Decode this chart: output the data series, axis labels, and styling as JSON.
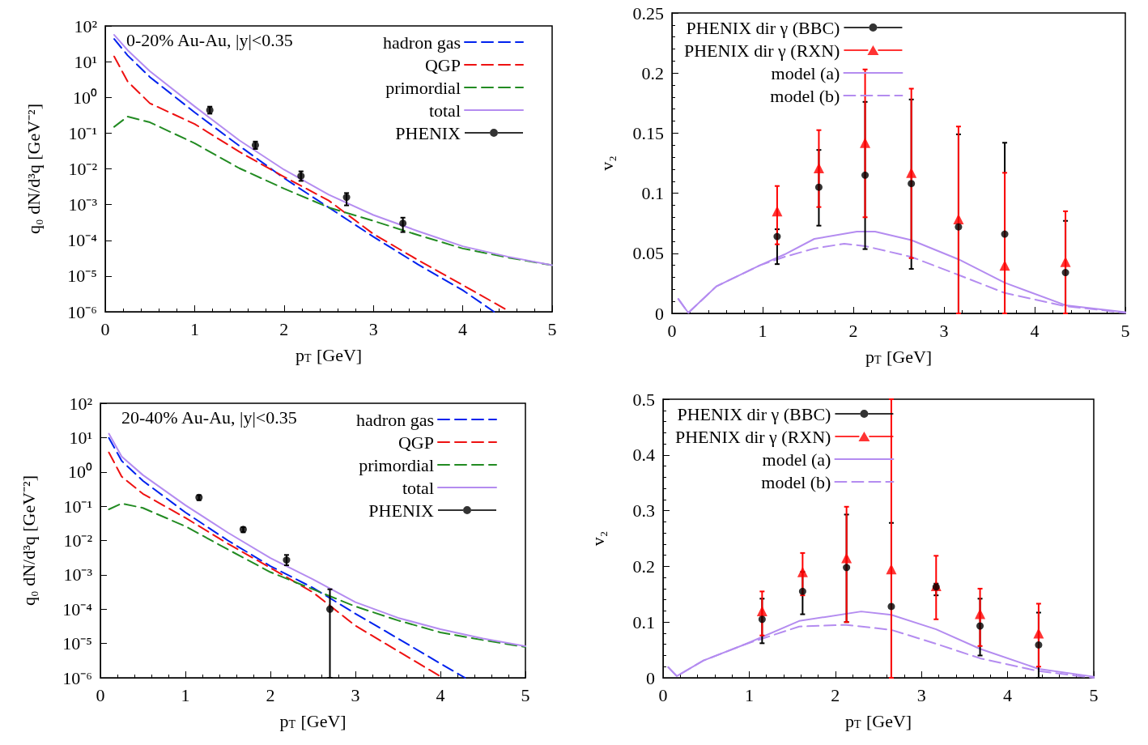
{
  "chart_data": [
    {
      "type": "line",
      "xlabel": "p$_{T}$ [GeV]",
      "ylabel": "q₀ dN/d³q [GeV⁻²]",
      "xlim": [
        0,
        5
      ],
      "xticks": [
        0,
        1,
        2,
        3,
        4,
        5
      ],
      "ylim": [
        1e-06,
        100
      ],
      "yticks": [
        {
          "value": 1e-06,
          "label": "10⁻⁶"
        },
        {
          "value": 1e-05,
          "label": "10⁻⁵"
        },
        {
          "value": 0.0001,
          "label": "10⁻⁴"
        },
        {
          "value": 0.001,
          "label": "10⁻³"
        },
        {
          "value": 0.01,
          "label": "10⁻²"
        },
        {
          "value": 0.1,
          "label": "10⁻¹"
        },
        {
          "value": 1,
          "label": "10⁰"
        },
        {
          "value": 10,
          "label": "10¹"
        },
        {
          "value": 100,
          "label": "10²"
        }
      ],
      "log": "y",
      "legend": "top right",
      "annotations": [
        "0-20% Au-Au, |y|<0.35"
      ],
      "series": [
        {
          "name": "hadron gas",
          "color": "#0022ee",
          "line_style": "dashed",
          "marker": "none",
          "x": [
            0.1,
            0.25,
            0.5,
            1,
            1.5,
            2,
            2.5,
            3,
            3.5,
            4,
            4.35
          ],
          "values": [
            43,
            15,
            3.7,
            0.38,
            0.044,
            0.0055,
            0.00083,
            0.000126,
            2.1e-05,
            4e-06,
            1e-06
          ]
        },
        {
          "name": "QGP",
          "type": "line",
          "color": "#ee1111",
          "line_style": "dashed",
          "marker": "none",
          "x": [
            0.1,
            0.25,
            0.5,
            1,
            1.5,
            2,
            2.5,
            3,
            3.5,
            4,
            4.5,
            4.52
          ],
          "values": [
            14,
            2.8,
            0.68,
            0.18,
            0.03,
            0.006,
            0.0013,
            0.00015,
            2.8e-05,
            5.6e-06,
            1.1e-06,
            1e-06
          ]
        },
        {
          "name": "primordial",
          "type": "line",
          "color": "#228b22",
          "line_style": "dashed",
          "marker": "none",
          "x": [
            0.1,
            0.25,
            0.5,
            1,
            1.5,
            2,
            2.5,
            3,
            3.5,
            4,
            4.5,
            5
          ],
          "values": [
            0.15,
            0.29,
            0.2,
            0.052,
            0.0104,
            0.0028,
            0.00083,
            0.00035,
            0.00014,
            5.9e-05,
            3.3e-05,
            2e-05
          ]
        },
        {
          "name": "total",
          "type": "line",
          "color": "#b48cf0",
          "line_style": "solid",
          "marker": "none",
          "x": [
            0.1,
            0.25,
            0.5,
            1,
            1.5,
            2,
            2.5,
            3,
            3.5,
            4,
            4.5,
            5
          ],
          "values": [
            56,
            21,
            5.4,
            0.56,
            0.063,
            0.0095,
            0.0019,
            0.00051,
            0.00018,
            6.8e-05,
            3.5e-05,
            2e-05
          ]
        },
        {
          "name": "PHENIX",
          "type": "scatter",
          "color": "#000000",
          "marker": "circle",
          "x": [
            1.17,
            1.68,
            2.19,
            2.7,
            3.33
          ],
          "values": [
            0.44,
            0.046,
            0.0063,
            0.0016,
            0.0003
          ],
          "errors": [
            [
              0.35,
              0.55
            ],
            [
              0.036,
              0.058
            ],
            [
              0.0046,
              0.0085
            ],
            [
              0.00095,
              0.0021
            ],
            [
              0.00017,
              0.00043
            ]
          ]
        }
      ]
    },
    {
      "type": "line",
      "xlabel": "p$_{T}$ [GeV]",
      "ylabel": "v₂",
      "xlim": [
        0,
        5
      ],
      "xticks": [
        0,
        1,
        2,
        3,
        4,
        5
      ],
      "ylim": [
        0,
        0.25
      ],
      "yticks": [
        0,
        0.05,
        0.1,
        0.15,
        0.2,
        0.25
      ],
      "legend": "top left",
      "series": [
        {
          "name": "PHENIX dir γ (BBC)",
          "type": "scatter",
          "color": "#000000",
          "marker": "circle",
          "x": [
            1.16,
            1.62,
            2.13,
            2.64,
            3.16,
            3.67,
            4.34
          ],
          "values": [
            0.064,
            0.105,
            0.115,
            0.108,
            0.072,
            0.066,
            0.034
          ],
          "errors": [
            [
              0.041,
              0.07
            ],
            [
              0.073,
              0.136
            ],
            [
              0.0535,
              0.176
            ],
            [
              0.037,
              0.178
            ],
            [
              0,
              0.149
            ],
            [
              0,
              0.142
            ],
            [
              0,
              0.077
            ]
          ]
        },
        {
          "name": "PHENIX dir γ (RXN)",
          "type": "scatter",
          "color": "#ff0000",
          "marker": "triangle",
          "x": [
            1.16,
            1.62,
            2.13,
            2.64,
            3.16,
            3.67,
            4.34
          ],
          "values": [
            0.085,
            0.121,
            0.142,
            0.117,
            0.0785,
            0.04,
            0.043
          ],
          "errors": [
            [
              0.0575,
              0.106
            ],
            [
              0.0885,
              0.1525
            ],
            [
              0.08,
              0.203
            ],
            [
              0.046,
              0.187
            ],
            [
              0,
              0.1555
            ],
            [
              0,
              0.117
            ],
            [
              0,
              0.085
            ]
          ]
        },
        {
          "name": "model (a)",
          "type": "line",
          "color": "#b48cf0",
          "line_style": "solid",
          "marker": "none",
          "x": [
            0.07,
            0.18,
            0.49,
            0.97,
            1.24,
            1.57,
            2.04,
            2.24,
            2.64,
            3.16,
            3.67,
            4.34,
            5
          ],
          "values": [
            0.012,
            0.0005,
            0.0225,
            0.04,
            0.049,
            0.062,
            0.068,
            0.068,
            0.061,
            0.045,
            0.0255,
            0.0068,
            0.001
          ]
        },
        {
          "name": "model (b)",
          "type": "line",
          "color": "#b48cf0",
          "line_style": "dashed",
          "marker": "none",
          "x": [
            0.07,
            0.18,
            0.49,
            0.97,
            1.24,
            1.57,
            1.9,
            2.13,
            2.64,
            3.16,
            3.67,
            4.34,
            5
          ],
          "values": [
            0.012,
            0.0005,
            0.0225,
            0.04,
            0.047,
            0.054,
            0.058,
            0.056,
            0.047,
            0.032,
            0.017,
            0.006,
            0.0005
          ]
        }
      ]
    },
    {
      "type": "line",
      "xlabel": "p$_{T}$ [GeV]",
      "ylabel": "q₀ dN/d³q [GeV⁻²]",
      "xlim": [
        0,
        5
      ],
      "xticks": [
        0,
        1,
        2,
        3,
        4,
        5
      ],
      "ylim": [
        1e-06,
        100
      ],
      "yticks": [
        {
          "value": 1e-06,
          "label": "10⁻⁶"
        },
        {
          "value": 1e-05,
          "label": "10⁻⁵"
        },
        {
          "value": 0.0001,
          "label": "10⁻⁴"
        },
        {
          "value": 0.001,
          "label": "10⁻³"
        },
        {
          "value": 0.01,
          "label": "10⁻²"
        },
        {
          "value": 0.1,
          "label": "10⁻¹"
        },
        {
          "value": 1,
          "label": "10⁰"
        },
        {
          "value": 10,
          "label": "10¹"
        },
        {
          "value": 100,
          "label": "10²"
        }
      ],
      "log": "y",
      "legend": "top right",
      "annotations": [
        "20-40% Au-Au, |y|<0.35"
      ],
      "series": [
        {
          "name": "hadron gas",
          "type": "line",
          "color": "#0022ee",
          "line_style": "dashed",
          "marker": "none",
          "x": [
            0.1,
            0.25,
            0.5,
            1,
            1.5,
            2,
            2.5,
            3,
            3.5,
            4,
            4.29
          ],
          "values": [
            9.8,
            2.1,
            0.55,
            0.066,
            0.01,
            0.0018,
            0.00042,
            7.4e-05,
            1.4e-05,
            2.6e-06,
            1e-06
          ]
        },
        {
          "name": "QGP",
          "type": "line",
          "color": "#ee1111",
          "line_style": "dashed",
          "marker": "none",
          "x": [
            0.1,
            0.25,
            0.5,
            1,
            1.5,
            2,
            2.5,
            3,
            3.5,
            4
          ],
          "values": [
            3.7,
            0.73,
            0.23,
            0.046,
            0.0081,
            0.0016,
            0.00031,
            3.3e-05,
            6e-06,
            1.1e-06
          ]
        },
        {
          "name": "primordial",
          "type": "line",
          "color": "#228b22",
          "line_style": "dashed",
          "marker": "none",
          "x": [
            0.1,
            0.25,
            0.5,
            1,
            1.5,
            2,
            2.5,
            3,
            3.5,
            4,
            4.5,
            5
          ],
          "values": [
            0.081,
            0.12,
            0.089,
            0.026,
            0.0055,
            0.0012,
            0.00038,
            0.00012,
            4.7e-05,
            2.1e-05,
            1.26e-05,
            7.9e-06
          ]
        },
        {
          "name": "total",
          "type": "line",
          "color": "#b48cf0",
          "line_style": "solid",
          "marker": "none",
          "x": [
            0.1,
            0.25,
            0.5,
            1,
            1.5,
            2,
            2.5,
            3,
            3.5,
            4,
            4.5,
            5
          ],
          "values": [
            13,
            2.8,
            0.81,
            0.107,
            0.017,
            0.0031,
            0.00074,
            0.00016,
            5.6e-05,
            2.6e-05,
            1.4e-05,
            8.3e-06
          ]
        },
        {
          "name": "PHENIX",
          "type": "scatter",
          "color": "#000000",
          "marker": "circle",
          "x": [
            1.16,
            1.68,
            2.19,
            2.7
          ],
          "values": [
            0.18,
            0.021,
            0.0027,
            0.0001
          ],
          "errors": [
            [
              0.15,
              0.21
            ],
            [
              0.0174,
              0.0245
            ],
            [
              0.0019,
              0.0038
            ],
            [
              1e-06,
              0.00038
            ]
          ]
        }
      ]
    },
    {
      "type": "line",
      "xlabel": "p$_{T}$ [GeV]",
      "ylabel": "v₂",
      "xlim": [
        0,
        5
      ],
      "xticks": [
        0,
        1,
        2,
        3,
        4,
        5
      ],
      "ylim": [
        0,
        0.5
      ],
      "yticks": [
        0,
        0.1,
        0.2,
        0.3,
        0.4,
        0.5
      ],
      "legend": "top left",
      "series": [
        {
          "name": "PHENIX dir γ (BBC)",
          "type": "scatter",
          "color": "#000000",
          "marker": "circle",
          "x": [
            1.15,
            1.62,
            2.13,
            2.65,
            3.17,
            3.68,
            4.36
          ],
          "values": [
            0.105,
            0.155,
            0.198,
            0.128,
            0.163,
            0.093,
            0.059
          ],
          "errors": [
            [
              0.062,
              0.142
            ],
            [
              0.114,
              0.19
            ],
            [
              0.1,
              0.293
            ],
            [
              0,
              0.278
            ],
            [
              0.148,
              0.169
            ],
            [
              0.04,
              0.142
            ],
            [
              0,
              0.117
            ]
          ]
        },
        {
          "name": "PHENIX dir γ (RXN)",
          "type": "scatter",
          "color": "#ff0000",
          "marker": "triangle",
          "x": [
            1.15,
            1.62,
            2.13,
            2.65,
            3.17,
            3.68,
            4.36
          ],
          "values": [
            0.12,
            0.19,
            0.215,
            0.195,
            0.165,
            0.115,
            0.08
          ],
          "errors": [
            [
              0.076,
              0.155
            ],
            [
              0.148,
              0.224
            ],
            [
              0.1,
              0.307
            ],
            [
              0,
              0.5
            ],
            [
              0.105,
              0.219
            ],
            [
              0.057,
              0.16
            ],
            [
              0.02,
              0.133
            ]
          ]
        },
        {
          "name": "model (a)",
          "type": "line",
          "color": "#b48cf0",
          "line_style": "solid",
          "marker": "none",
          "x": [
            0.06,
            0.16,
            0.47,
            0.95,
            1.58,
            2.3,
            2.65,
            3.17,
            3.68,
            4.36,
            5
          ],
          "values": [
            0.019,
            0.003,
            0.031,
            0.06,
            0.102,
            0.119,
            0.113,
            0.087,
            0.052,
            0.016,
            0.002
          ]
        },
        {
          "name": "model (b)",
          "type": "line",
          "color": "#b48cf0",
          "line_style": "dashed",
          "marker": "none",
          "x": [
            0.06,
            0.16,
            0.47,
            0.95,
            1.58,
            2.13,
            2.65,
            3.17,
            3.68,
            4.36,
            5
          ],
          "values": [
            0.019,
            0.003,
            0.031,
            0.06,
            0.092,
            0.095,
            0.086,
            0.061,
            0.035,
            0.012,
            0
          ]
        }
      ]
    }
  ]
}
